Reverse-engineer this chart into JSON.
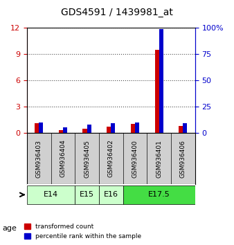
{
  "title": "GDS4591 / 1439981_at",
  "samples": [
    "GSM936403",
    "GSM936404",
    "GSM936405",
    "GSM936402",
    "GSM936400",
    "GSM936401",
    "GSM936406"
  ],
  "transformed_counts": [
    1.1,
    0.3,
    0.5,
    0.7,
    1.0,
    9.5,
    0.8
  ],
  "percentile_ranks": [
    10,
    5,
    8,
    9,
    10,
    99,
    9
  ],
  "age_groups": [
    {
      "label": "E14",
      "span": [
        0,
        2
      ],
      "color": "#ccffcc"
    },
    {
      "label": "E15",
      "span": [
        2,
        3
      ],
      "color": "#ccffcc"
    },
    {
      "label": "E16",
      "span": [
        3,
        4
      ],
      "color": "#ccffcc"
    },
    {
      "label": "E17.5",
      "span": [
        4,
        7
      ],
      "color": "#44dd44"
    }
  ],
  "ylim_left": [
    0,
    12
  ],
  "ylim_right": [
    0,
    100
  ],
  "yticks_left": [
    0,
    3,
    6,
    9,
    12
  ],
  "yticks_right": [
    0,
    25,
    50,
    75,
    100
  ],
  "left_axis_color": "#cc0000",
  "right_axis_color": "#0000cc",
  "bar_color_red": "#cc0000",
  "bar_color_blue": "#0000cc",
  "background_color": "#ffffff",
  "sample_box_color": "#d0d0d0",
  "age_label": "age"
}
